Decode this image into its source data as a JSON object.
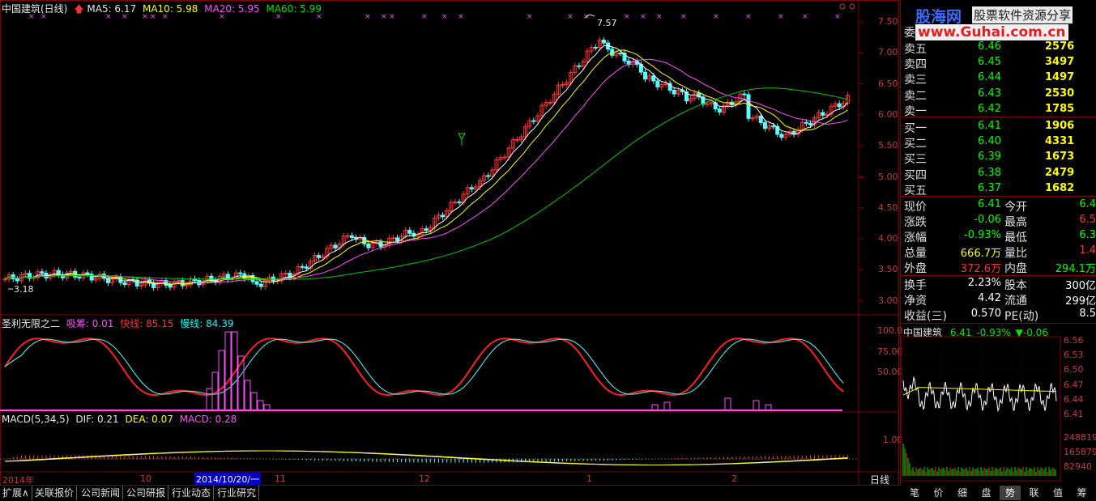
{
  "header": {
    "stock_name": "中国建筑(日线)",
    "ma5": "MA5: 6.17",
    "ma10": "MA10: 5.98",
    "ma20": "MA20: 5.95",
    "ma60": "MA60: 5.99"
  },
  "price_axis": [
    "7.50",
    "7.00",
    "6.50",
    "6.00",
    "5.50",
    "5.00",
    "4.50",
    "4.00",
    "3.50",
    "3.00"
  ],
  "annotations": {
    "high": "7.57",
    "low": "3.18"
  },
  "indicator1": {
    "name": "圣利无限之二",
    "xichou": "吸筹: 0.01",
    "kuaixian": "快线: 85.15",
    "manxian": "慢线: 84.39",
    "axis": [
      "100.0",
      "75.00",
      "50.00"
    ]
  },
  "macd": {
    "name": "MACD(5,34,5)",
    "dif": "DIF: 0.21",
    "dea": "DEA: 0.07",
    "macd": "MACD: 0.28",
    "axis": "1.00"
  },
  "time_axis": {
    "year": "2014年",
    "m10": "10",
    "selected_date": "2014/10/20/一",
    "m11": "11",
    "m12": "12",
    "m1": "1",
    "m2": "2",
    "period": "日线"
  },
  "bottom_tabs": [
    "扩展∧",
    "关联报价",
    "公司新闻",
    "公司研报",
    "行业动态",
    "行业研究"
  ],
  "logo": {
    "cn": "股海网",
    "slogan": "股票软件资源分享",
    "url": "www.Guhai.com.cn"
  },
  "order_book": {
    "wei": "委",
    "sells": [
      {
        "label": "卖五",
        "price": "6.46",
        "vol": "2576"
      },
      {
        "label": "卖四",
        "price": "6.45",
        "vol": "3497"
      },
      {
        "label": "卖三",
        "price": "6.44",
        "vol": "1497"
      },
      {
        "label": "卖二",
        "price": "6.43",
        "vol": "2530"
      },
      {
        "label": "卖一",
        "price": "6.42",
        "vol": "1785"
      }
    ],
    "buys": [
      {
        "label": "买一",
        "price": "6.41",
        "vol": "1906"
      },
      {
        "label": "买二",
        "price": "6.40",
        "vol": "4331"
      },
      {
        "label": "买三",
        "price": "6.39",
        "vol": "1673"
      },
      {
        "label": "买四",
        "price": "6.38",
        "vol": "2479"
      },
      {
        "label": "买五",
        "price": "6.37",
        "vol": "1682"
      }
    ]
  },
  "quote": {
    "left": [
      {
        "label": "现价",
        "value": "6.41",
        "color": "#00ff00"
      },
      {
        "label": "涨跌",
        "value": "-0.06",
        "color": "#00ff00"
      },
      {
        "label": "涨幅",
        "value": "-0.93%",
        "color": "#00ff00"
      },
      {
        "label": "总量",
        "value": "666.7万",
        "color": "#ffff00"
      },
      {
        "label": "外盘",
        "value": "372.6万",
        "color": "#ff3232"
      }
    ],
    "right": [
      {
        "label": "今开",
        "value": "6.4",
        "color": "#00ff00"
      },
      {
        "label": "最高",
        "value": "6.5",
        "color": "#ff3232"
      },
      {
        "label": "最低",
        "value": "6.3",
        "color": "#00ff00"
      },
      {
        "label": "量比",
        "value": "1.4",
        "color": "#ff3232"
      },
      {
        "label": "内盘",
        "value": "294.1万",
        "color": "#00ff00"
      }
    ],
    "fund_left": [
      {
        "label": "换手",
        "value": "2.23%"
      },
      {
        "label": "净资",
        "value": "4.42"
      },
      {
        "label": "收益(三)",
        "value": "0.570"
      }
    ],
    "fund_right": [
      {
        "label": "股本",
        "value": "300亿"
      },
      {
        "label": "流通",
        "value": "299亿"
      },
      {
        "label": "PE(动)",
        "value": "8.5"
      }
    ]
  },
  "intraday": {
    "name": "中国建筑",
    "price": "6.41",
    "change_pct": "-0.93%",
    "change": "▼-0.06",
    "axis": [
      "6.56",
      "6.53",
      "6.50",
      "6.47",
      "6.44",
      "6.41"
    ],
    "vol_axis": [
      "248819",
      "165879",
      "82940"
    ]
  },
  "side_tabs": [
    "笔",
    "价",
    "细",
    "盘",
    "势",
    "联",
    "值",
    "筹"
  ],
  "active_side_tab": "势"
}
